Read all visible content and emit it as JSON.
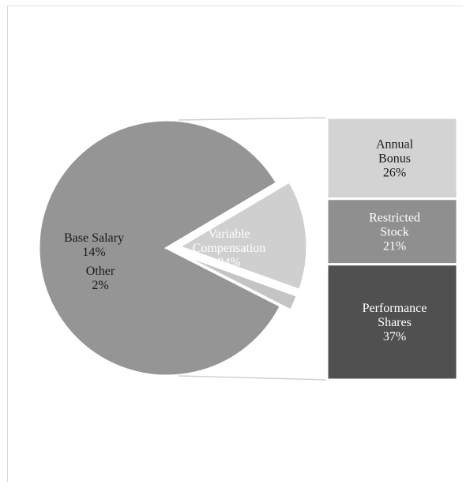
{
  "chart_data": {
    "type": "pie",
    "title": "",
    "pie": {
      "slices": [
        {
          "name": "Variable Compensation",
          "label_lines": [
            "Variable",
            "Compensation",
            "84%"
          ],
          "value": 84,
          "color": "#959595",
          "text_color": "#ffffff"
        },
        {
          "name": "Base Salary",
          "label_lines": [
            "Base Salary",
            "14%"
          ],
          "value": 14,
          "color": "#cfcfcf",
          "text_color": "#1a1a1a"
        },
        {
          "name": "Other",
          "label_lines": [
            "Other",
            "2%"
          ],
          "value": 2,
          "color": "#c4c4c4",
          "text_color": "#1a1a1a"
        }
      ]
    },
    "breakdown_bar": {
      "of_slice": "Variable Compensation",
      "segments": [
        {
          "name": "Annual Bonus",
          "label_lines": [
            "Annual",
            "Bonus",
            "26%"
          ],
          "value": 26,
          "color": "#d3d3d3",
          "text_color": "#1a1a1a"
        },
        {
          "name": "Restricted Stock",
          "label_lines": [
            "Restricted",
            "Stock",
            "21%"
          ],
          "value": 21,
          "color": "#8f8f8f",
          "text_color": "#ffffff"
        },
        {
          "name": "Performance Shares",
          "label_lines": [
            "Performance",
            "Shares",
            "37%"
          ],
          "value": 37,
          "color": "#505050",
          "text_color": "#ffffff"
        }
      ]
    }
  }
}
